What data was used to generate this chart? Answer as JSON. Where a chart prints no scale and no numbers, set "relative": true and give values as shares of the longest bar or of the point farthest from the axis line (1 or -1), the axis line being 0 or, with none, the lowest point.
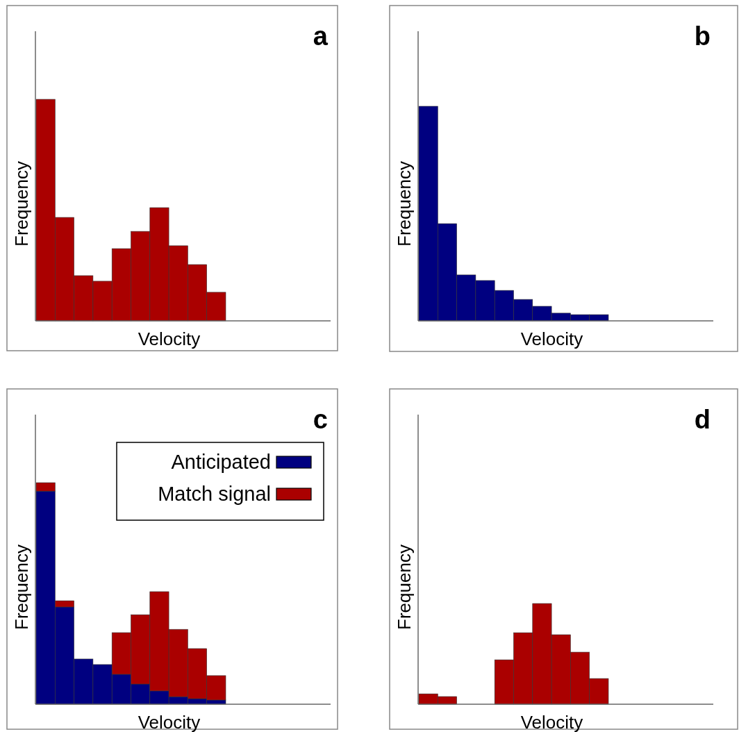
{
  "chart_data": [
    {
      "type": "bar",
      "annotations": [
        "a"
      ],
      "xlabel": "Velocity",
      "ylabel": "Frequency",
      "relative": true,
      "categories": [
        null,
        null,
        null,
        null,
        null,
        null,
        null,
        null,
        null,
        null
      ],
      "series": [
        {
          "color": "#aa0000",
          "values": [
            1,
            0.467,
            0.204,
            0.179,
            0.326,
            0.404,
            0.511,
            0.339,
            0.254,
            0.129
          ]
        }
      ]
    },
    {
      "type": "bar",
      "annotations": [
        "b"
      ],
      "xlabel": "Velocity",
      "ylabel": "Frequency",
      "relative": true,
      "categories": [
        null,
        null,
        null,
        null,
        null,
        null,
        null,
        null,
        null,
        null
      ],
      "series": [
        {
          "color": "#000080",
          "values": [
            1,
            0.453,
            0.214,
            0.188,
            0.142,
            0.1,
            0.068,
            0.036,
            0.029,
            0.029
          ]
        }
      ]
    },
    {
      "type": "bar",
      "annotations": [
        "c"
      ],
      "xlabel": "Velocity",
      "ylabel": "Frequency",
      "relative": true,
      "stacked": true,
      "legend": "top right",
      "categories": [
        null,
        null,
        null,
        null,
        null,
        null,
        null,
        null,
        null,
        null
      ],
      "series": [
        {
          "name": "Anticipated",
          "color": "#000080",
          "values": [
            0.962,
            0.439,
            0.204,
            0.179,
            0.135,
            0.091,
            0.06,
            0.034,
            0.025,
            0.019
          ]
        },
        {
          "name": "Match signal",
          "color": "#aa0000",
          "values": [
            0.038,
            0.028,
            0,
            0,
            0.188,
            0.313,
            0.448,
            0.304,
            0.226,
            0.11
          ]
        }
      ]
    },
    {
      "type": "bar",
      "annotations": [
        "d"
      ],
      "xlabel": "Velocity",
      "ylabel": "Frequency",
      "relative": true,
      "categories": [
        null,
        null,
        null,
        null,
        null,
        null,
        null,
        null,
        null,
        null
      ],
      "series": [
        {
          "color": "#aa0000",
          "values": [
            0.103,
            0.076,
            0,
            0,
            0.441,
            0.71,
            1,
            0.69,
            0.517,
            0.255
          ]
        }
      ]
    }
  ]
}
